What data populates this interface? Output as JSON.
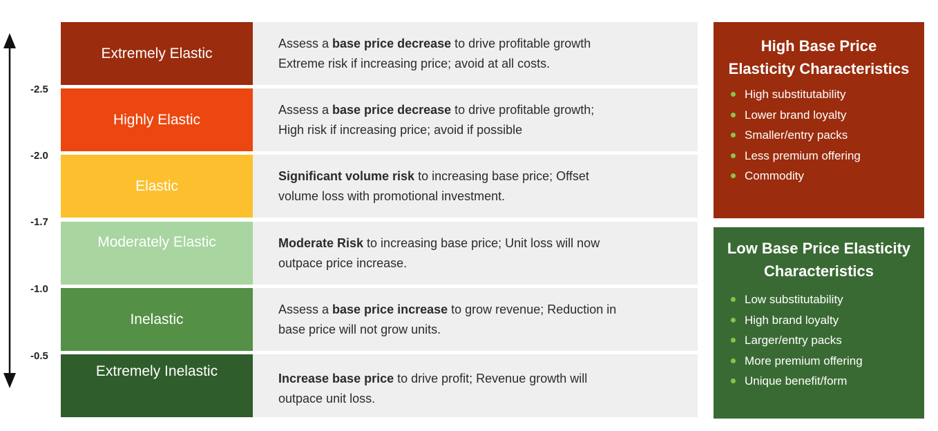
{
  "axis": {
    "ticks": [
      "-2.5",
      "-2.0",
      "-1.7",
      "-1.0",
      "-0.5"
    ]
  },
  "rows": [
    {
      "level": "Extremely Elastic",
      "color": "#9b2c0e",
      "lines": [
        [
          {
            "t": "Assess a ",
            "b": false
          },
          {
            "t": "base price decrease",
            "b": true
          },
          {
            "t": " to drive profitable growth",
            "b": false
          }
        ],
        [
          {
            "t": "Extreme risk if increasing price; avoid at all costs.",
            "b": false
          }
        ]
      ]
    },
    {
      "level": "Highly Elastic",
      "color": "#ec4710",
      "lines": [
        [
          {
            "t": "Assess a ",
            "b": false
          },
          {
            "t": "base price decrease",
            "b": true
          },
          {
            "t": " to drive profitable growth;",
            "b": false
          }
        ],
        [
          {
            "t": "High risk if increasing price; avoid if possible",
            "b": false
          }
        ]
      ]
    },
    {
      "level": "Elastic",
      "color": "#fcc02e",
      "lines": [
        [
          {
            "t": "Significant volume risk",
            "b": true
          },
          {
            "t": " to increasing base price; Offset",
            "b": false
          }
        ],
        [
          {
            "t": "volume loss with promotional investment.",
            "b": false
          }
        ]
      ]
    },
    {
      "level": "Moderately Elastic",
      "color": "#a8d5a0",
      "lines": [
        [
          {
            "t": "Moderate Risk",
            "b": true
          },
          {
            "t": " to increasing base price; Unit loss will now",
            "b": false
          }
        ],
        [
          {
            "t": "outpace price increase.",
            "b": false
          }
        ]
      ]
    },
    {
      "level": "Inelastic",
      "color": "#549045",
      "lines": [
        [
          {
            "t": "Assess a ",
            "b": false
          },
          {
            "t": "base price increase",
            "b": true
          },
          {
            "t": " to grow revenue; Reduction in",
            "b": false
          }
        ],
        [
          {
            "t": "base price will not grow units.",
            "b": false
          }
        ]
      ]
    },
    {
      "level": "Extremely Inelastic",
      "color": "#2f5d2b",
      "lines": [
        [
          {
            "t": "Increase base price",
            "b": true
          },
          {
            "t": " to drive profit; Revenue growth will",
            "b": false
          }
        ],
        [
          {
            "t": "outpace unit loss.",
            "b": false
          }
        ]
      ]
    }
  ],
  "high_panel": {
    "title_line1": "High Base Price",
    "title_line2": "Elasticity Characteristics",
    "color": "#9b2c0e",
    "items": [
      "High substitutability",
      "Lower brand loyalty",
      "Smaller/entry packs",
      "Less premium offering",
      "Commodity"
    ]
  },
  "low_panel": {
    "title_line1": "Low Base Price Elasticity",
    "title_line2": "Characteristics",
    "color": "#3a6a34",
    "items": [
      "Low substitutability",
      "High brand loyalty",
      "Larger/entry packs",
      "More premium offering",
      "Unique benefit/form"
    ]
  },
  "bullet_color": "#8bc34a"
}
